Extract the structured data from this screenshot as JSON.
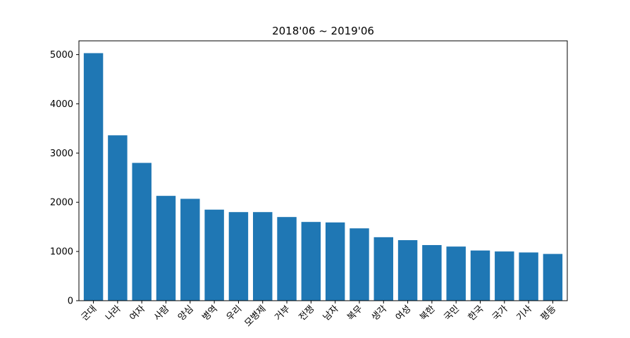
{
  "chart_data": {
    "type": "bar",
    "title": "2018'06 ~ 2019'06",
    "xlabel": "",
    "ylabel": "",
    "categories": [
      "군대",
      "나라",
      "여자",
      "사람",
      "양심",
      "병역",
      "우리",
      "모병제",
      "거부",
      "전쟁",
      "남자",
      "복무",
      "생각",
      "여성",
      "북한",
      "국민",
      "한국",
      "국가",
      "기사",
      "평등"
    ],
    "values": [
      5030,
      3360,
      2800,
      2130,
      2070,
      1850,
      1800,
      1800,
      1700,
      1600,
      1590,
      1470,
      1290,
      1230,
      1130,
      1100,
      1020,
      1000,
      980,
      950
    ],
    "ylim": [
      0,
      5280
    ],
    "yticks": [
      0,
      1000,
      2000,
      3000,
      4000,
      5000
    ],
    "bar_color": "#1f77b4",
    "grid": false,
    "legend": "none"
  }
}
